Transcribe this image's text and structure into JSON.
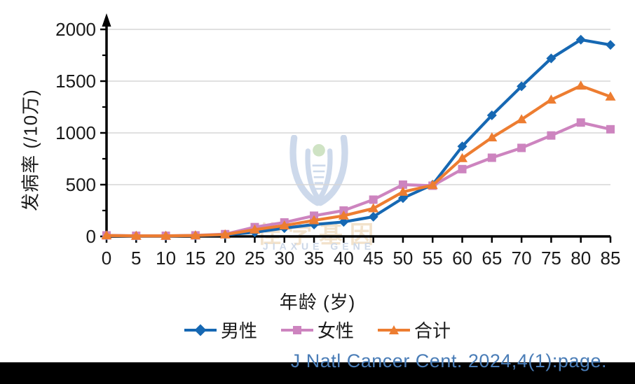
{
  "figure": {
    "y_axis_title": "发病率 (/10万)",
    "x_axis_title": "年龄 (岁)",
    "citation": "J Natl Cancer Cent. 2024,4(1):page.",
    "watermark": {
      "cn": "佳学基因",
      "en": "JIAXUE GENE"
    }
  },
  "colors": {
    "male": "#1668b3",
    "female": "#cd84bf",
    "total": "#ed7d31",
    "grid": "#d6d6d6",
    "axis": "#000000",
    "tick_label": "#1a1a1a",
    "citation": "#4a7db7",
    "watermark_blue": "#cdd9eb",
    "watermark_green": "#cfe3c4"
  },
  "chart_data": {
    "type": "line",
    "title": "",
    "xlabel": "年龄 (岁)",
    "ylabel": "发病率 (/10万)",
    "x": [
      0,
      5,
      10,
      15,
      20,
      25,
      30,
      35,
      40,
      45,
      50,
      55,
      60,
      65,
      70,
      75,
      80,
      85
    ],
    "series": [
      {
        "name": "男性",
        "key": "male",
        "marker": "diamond",
        "color": "#1668b3",
        "values": [
          8,
          5,
          5,
          8,
          15,
          40,
          80,
          115,
          140,
          190,
          370,
          500,
          870,
          1170,
          1450,
          1720,
          1900,
          1850
        ]
      },
      {
        "name": "女性",
        "key": "female",
        "marker": "square",
        "color": "#cd84bf",
        "values": [
          10,
          6,
          6,
          10,
          22,
          90,
          135,
          200,
          250,
          355,
          500,
          490,
          650,
          760,
          855,
          975,
          1100,
          1035
        ]
      },
      {
        "name": "合计",
        "key": "total",
        "marker": "triangle",
        "color": "#ed7d31",
        "values": [
          9,
          5,
          5,
          9,
          18,
          65,
          105,
          155,
          200,
          270,
          430,
          495,
          755,
          955,
          1130,
          1320,
          1455,
          1350
        ]
      }
    ],
    "ylim": [
      0,
      2000
    ],
    "yticks": [
      0,
      500,
      1000,
      1500,
      2000
    ],
    "yminorticks": [
      250,
      750,
      1250,
      1750
    ],
    "grid": "horizontal",
    "legend_position": "bottom",
    "y_axis_arrow": true
  }
}
